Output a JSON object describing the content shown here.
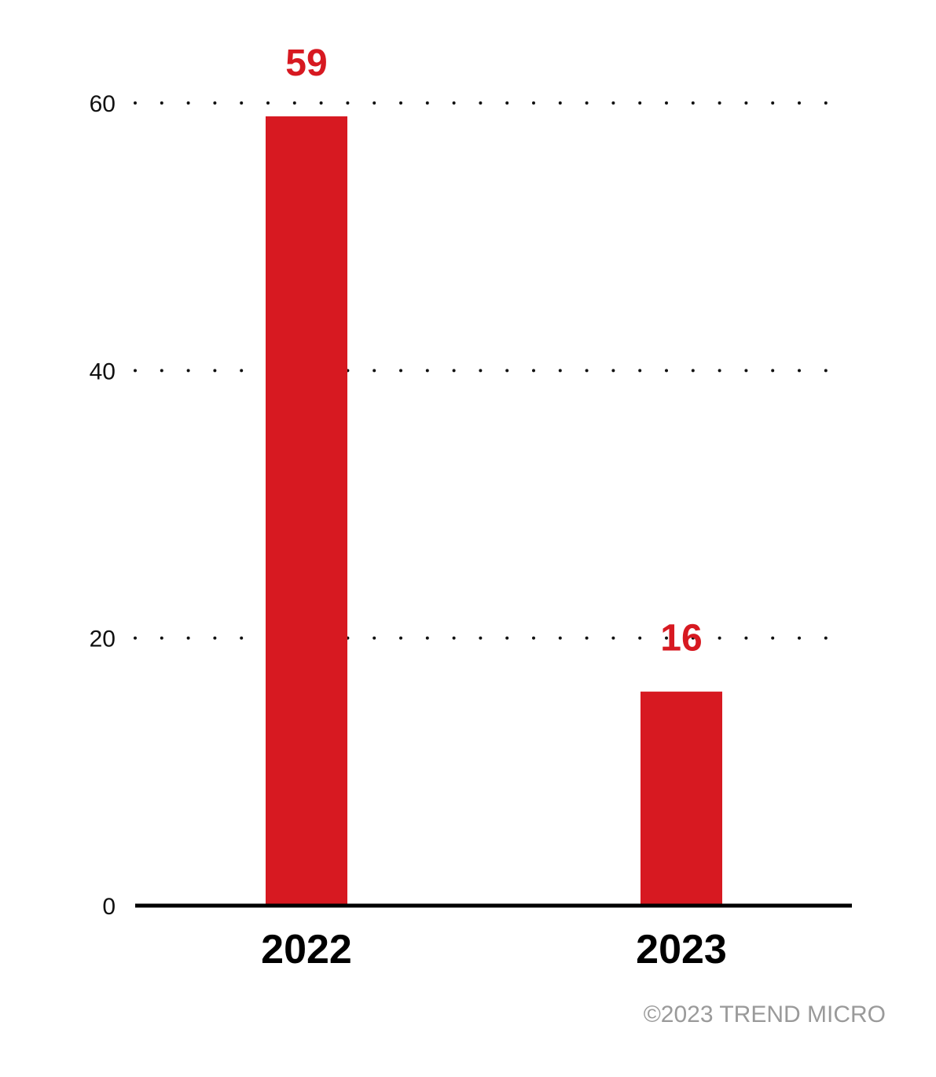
{
  "chart_data": {
    "type": "bar",
    "categories": [
      "2022",
      "2023"
    ],
    "values": [
      59,
      16
    ],
    "value_labels": [
      "59",
      "16"
    ],
    "y_ticks": [
      "0",
      "20",
      "40",
      "60"
    ],
    "ylim": [
      0,
      60
    ],
    "grid": "dotted horizontal",
    "colors": {
      "bar": "#D71921",
      "value_label": "#D71921",
      "axis": "#000000",
      "grid_dot": "#111111"
    }
  },
  "footer": {
    "copyright": "©2023 TREND MICRO"
  }
}
